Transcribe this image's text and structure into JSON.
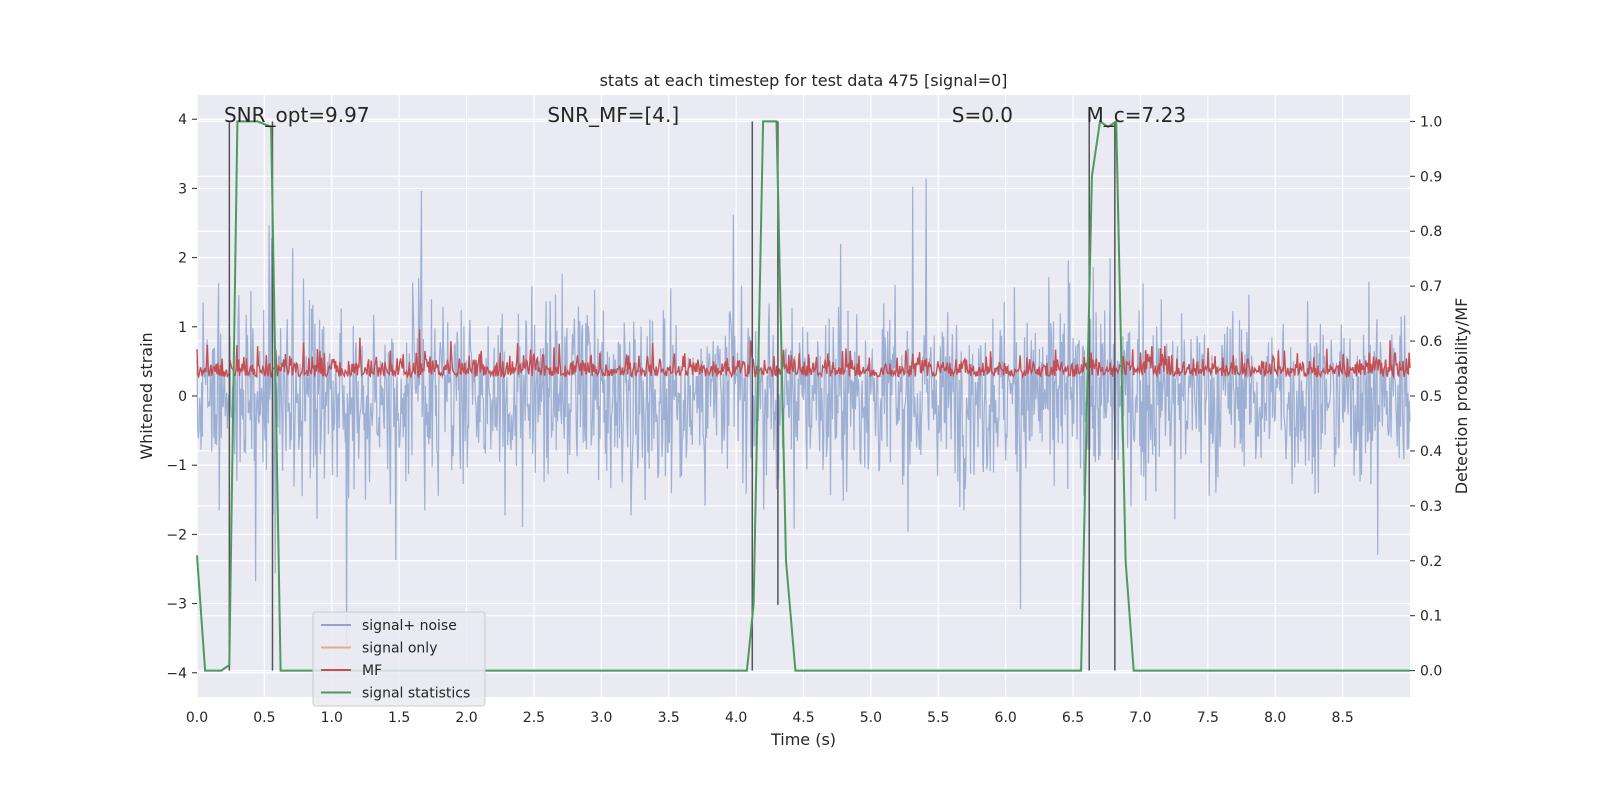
{
  "chart_data": {
    "type": "line",
    "title": "stats at each timestep for test data 475 [signal=0]",
    "xlabel": "Time (s)",
    "ylabel": "Whitened strain",
    "y2label": "Detection probability/MF",
    "xlim": [
      0.0,
      9.0
    ],
    "ylim": [
      -4.35,
      4.35
    ],
    "y2lim": [
      -0.048,
      1.048
    ],
    "xticks": [
      "0.0",
      "0.5",
      "1.0",
      "1.5",
      "2.0",
      "2.5",
      "3.0",
      "3.5",
      "4.0",
      "4.5",
      "5.0",
      "5.5",
      "6.0",
      "6.5",
      "7.0",
      "7.5",
      "8.0",
      "8.5"
    ],
    "yticks": [
      "−4",
      "−3",
      "−2",
      "−1",
      "0",
      "1",
      "2",
      "3",
      "4"
    ],
    "y2ticks": [
      "0.0",
      "0.1",
      "0.2",
      "0.3",
      "0.4",
      "0.5",
      "0.6",
      "0.7",
      "0.8",
      "0.9",
      "1.0"
    ],
    "grid": true,
    "legend_position": "lower-left",
    "annotations": [
      {
        "label": "SNR_opt=9.97",
        "x": 0.2
      },
      {
        "label": "SNR_MF=[4.]",
        "x": 2.6
      },
      {
        "label": "S=0.0",
        "x": 5.6
      },
      {
        "label": "M_c=7.23",
        "x": 6.6
      }
    ],
    "series": [
      {
        "name": "signal+ noise",
        "axis": "left",
        "color": "#8fa4cc",
        "description": "noisy whitened strain, roughly symmetric about 0 with amplitude up to about ±3.5",
        "envelope": {
          "max": 3.5,
          "min": -3.6
        }
      },
      {
        "name": "signal only",
        "axis": "left",
        "color": "#e8a98a",
        "values": []
      },
      {
        "name": "MF",
        "axis": "right",
        "color": "#c44e52",
        "description": "matched filter output fluctuating between about 0.5 and 0.63",
        "range": [
          0.5,
          0.63
        ]
      },
      {
        "name": "signal statistics",
        "axis": "right",
        "color": "#4c9a5c",
        "points": [
          [
            0.0,
            0.21
          ],
          [
            0.06,
            0.0
          ],
          [
            0.18,
            0.0
          ],
          [
            0.24,
            0.01
          ],
          [
            0.3,
            1.0
          ],
          [
            0.45,
            1.0
          ],
          [
            0.55,
            0.99
          ],
          [
            0.62,
            0.0
          ],
          [
            4.08,
            0.0
          ],
          [
            4.13,
            0.12
          ],
          [
            4.2,
            1.0
          ],
          [
            4.3,
            1.0
          ],
          [
            4.37,
            0.2
          ],
          [
            4.44,
            0.0
          ],
          [
            6.56,
            0.0
          ],
          [
            6.64,
            0.9
          ],
          [
            6.7,
            1.0
          ],
          [
            6.76,
            0.99
          ],
          [
            6.82,
            1.0
          ],
          [
            6.89,
            0.2
          ],
          [
            6.95,
            0.0
          ],
          [
            9.0,
            0.0
          ]
        ]
      }
    ],
    "vertical_markers": [
      {
        "x": 0.24,
        "y_range": [
          0.0,
          1.0
        ]
      },
      {
        "x": 0.56,
        "y_range": [
          0.0,
          1.0
        ]
      },
      {
        "x": 4.12,
        "y_range": [
          0.0,
          1.0
        ]
      },
      {
        "x": 4.31,
        "y_range": [
          0.12,
          1.0
        ]
      },
      {
        "x": 6.62,
        "y_range": [
          0.0,
          1.0
        ]
      },
      {
        "x": 6.81,
        "y_range": [
          0.0,
          1.0
        ]
      }
    ]
  }
}
